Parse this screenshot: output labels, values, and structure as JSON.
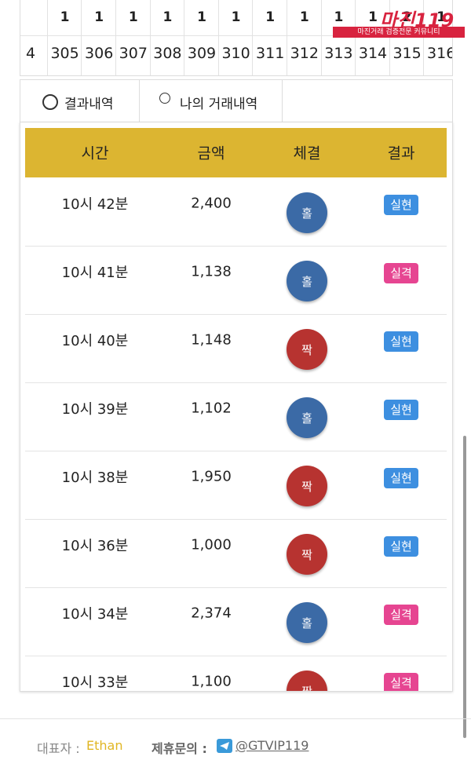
{
  "grid": {
    "top_row": [
      "1",
      "1",
      "1",
      "1",
      "1",
      "1",
      "1",
      "1",
      "1",
      "1",
      "2",
      "1"
    ],
    "numbers": [
      "4",
      "305",
      "306",
      "307",
      "308",
      "309",
      "310",
      "311",
      "312",
      "313",
      "314",
      "315",
      "316"
    ]
  },
  "logo": {
    "title": "마진119",
    "subtitle": "마진거래 검증전문 커뮤니티"
  },
  "tabs": [
    "결과내역",
    "나의 거래내역"
  ],
  "table": {
    "headers": [
      "시간",
      "금액",
      "체결",
      "결과"
    ],
    "rows": [
      {
        "time": "10시 42분",
        "amount": "2,400",
        "fill": "홀",
        "fill_color": "#3b6aa6",
        "result": "실현",
        "result_color": "#3d8fe0"
      },
      {
        "time": "10시 41분",
        "amount": "1,138",
        "fill": "홀",
        "fill_color": "#3b6aa6",
        "result": "실격",
        "result_color": "#e64591"
      },
      {
        "time": "10시 40분",
        "amount": "1,148",
        "fill": "짝",
        "fill_color": "#b73330",
        "result": "실현",
        "result_color": "#3d8fe0"
      },
      {
        "time": "10시 39분",
        "amount": "1,102",
        "fill": "홀",
        "fill_color": "#3b6aa6",
        "result": "실현",
        "result_color": "#3d8fe0"
      },
      {
        "time": "10시 38분",
        "amount": "1,950",
        "fill": "짝",
        "fill_color": "#b73330",
        "result": "실현",
        "result_color": "#3d8fe0"
      },
      {
        "time": "10시 36분",
        "amount": "1,000",
        "fill": "짝",
        "fill_color": "#b73330",
        "result": "실현",
        "result_color": "#3d8fe0"
      },
      {
        "time": "10시 34분",
        "amount": "2,374",
        "fill": "홀",
        "fill_color": "#3b6aa6",
        "result": "실격",
        "result_color": "#e64591"
      },
      {
        "time": "10시 33분",
        "amount": "1,100",
        "fill": "짝",
        "fill_color": "#b73330",
        "result": "실격",
        "result_color": "#e64591"
      }
    ]
  },
  "footer": {
    "rep_label": "대표자 :",
    "rep_name": "Ethan",
    "contact_label": "제휴문의 :",
    "contact": "@GTVIP119"
  }
}
